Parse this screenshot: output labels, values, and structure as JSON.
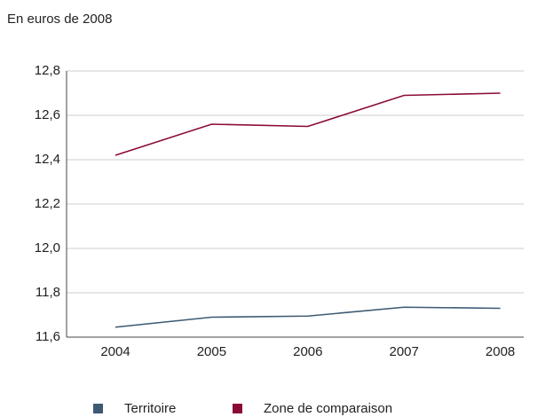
{
  "chart_data": {
    "type": "line",
    "subtitle": "En euros de 2008",
    "categories": [
      "2004",
      "2005",
      "2006",
      "2007",
      "2008"
    ],
    "series": [
      {
        "name": "Territoire",
        "color": "#3d5a73",
        "values": [
          11.645,
          11.69,
          11.695,
          11.735,
          11.73
        ]
      },
      {
        "name": "Zone de comparaison",
        "color": "#8b0a35",
        "values": [
          12.42,
          12.56,
          12.55,
          12.69,
          12.7
        ]
      }
    ],
    "ylim": [
      11.6,
      12.8
    ],
    "yticks": [
      {
        "value": 11.6,
        "label": "11,6"
      },
      {
        "value": 11.8,
        "label": "11,8"
      },
      {
        "value": 12.0,
        "label": "12,0"
      },
      {
        "value": 12.2,
        "label": "12,2"
      },
      {
        "value": 12.4,
        "label": "12,4"
      },
      {
        "value": 12.6,
        "label": "12,6"
      },
      {
        "value": 12.8,
        "label": "12,8"
      }
    ],
    "grid": true,
    "legend": "bottom"
  }
}
